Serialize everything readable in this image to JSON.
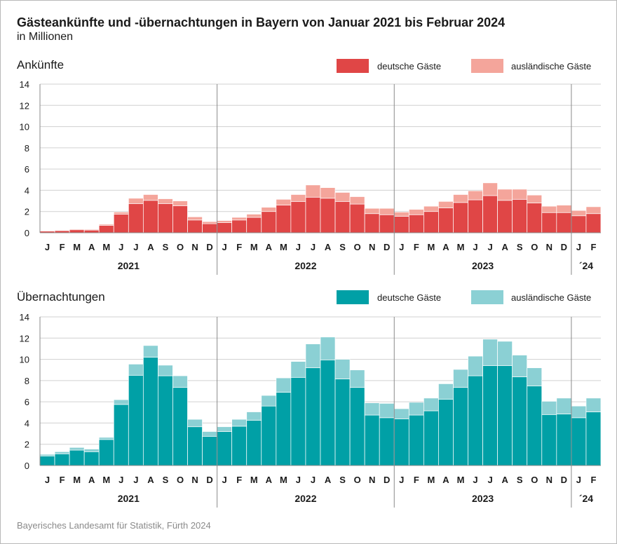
{
  "title": "Gästeankünfte und -übernachtungen in Bayern von Januar 2021 bis Februar 2024",
  "subtitle": "in Millionen",
  "source": "Bayerisches Landesamt für Statistik, Fürth 2024",
  "chart_data": [
    {
      "type": "bar",
      "stacked": true,
      "title": "Ankünfte",
      "ylim": [
        0,
        14
      ],
      "yticks": [
        0,
        2,
        4,
        6,
        8,
        10,
        12,
        14
      ],
      "grid": true,
      "legend": "top-right",
      "categories": [
        "J",
        "F",
        "M",
        "A",
        "M",
        "J",
        "J",
        "A",
        "S",
        "O",
        "N",
        "D",
        "J",
        "F",
        "M",
        "A",
        "M",
        "J",
        "J",
        "A",
        "S",
        "O",
        "N",
        "D",
        "J",
        "F",
        "M",
        "A",
        "M",
        "J",
        "J",
        "A",
        "S",
        "O",
        "N",
        "D",
        "J",
        "F"
      ],
      "years": [
        "2021",
        "2022",
        "2023",
        "´24"
      ],
      "series": [
        {
          "name": "deutsche Gäste",
          "color": "#e04646",
          "values": [
            0.15,
            0.2,
            0.28,
            0.25,
            0.7,
            1.75,
            2.75,
            3.05,
            2.75,
            2.55,
            1.2,
            0.85,
            0.95,
            1.2,
            1.45,
            2.0,
            2.6,
            2.95,
            3.35,
            3.25,
            2.95,
            2.7,
            1.8,
            1.7,
            1.55,
            1.7,
            2.0,
            2.35,
            2.85,
            3.1,
            3.5,
            3.05,
            3.15,
            2.8,
            1.9,
            1.9,
            1.6,
            1.8
          ]
        },
        {
          "name": "ausländische Gäste",
          "color": "#f4a59b",
          "values": [
            0.05,
            0.05,
            0.07,
            0.07,
            0.1,
            0.2,
            0.5,
            0.55,
            0.45,
            0.45,
            0.3,
            0.2,
            0.2,
            0.25,
            0.3,
            0.4,
            0.55,
            0.65,
            1.15,
            1.0,
            0.85,
            0.7,
            0.5,
            0.6,
            0.4,
            0.5,
            0.5,
            0.6,
            0.75,
            0.85,
            1.2,
            1.05,
            0.95,
            0.75,
            0.6,
            0.7,
            0.5,
            0.65
          ]
        }
      ]
    },
    {
      "type": "bar",
      "stacked": true,
      "title": "Übernachtungen",
      "ylim": [
        0,
        14
      ],
      "yticks": [
        0,
        2,
        4,
        6,
        8,
        10,
        12,
        14
      ],
      "grid": true,
      "legend": "top-right",
      "categories": [
        "J",
        "F",
        "M",
        "A",
        "M",
        "J",
        "J",
        "A",
        "S",
        "O",
        "N",
        "D",
        "J",
        "F",
        "M",
        "A",
        "M",
        "J",
        "J",
        "A",
        "S",
        "O",
        "N",
        "D",
        "J",
        "F",
        "M",
        "A",
        "M",
        "J",
        "J",
        "A",
        "S",
        "O",
        "N",
        "D",
        "J",
        "F"
      ],
      "years": [
        "2021",
        "2022",
        "2023",
        "´24"
      ],
      "series": [
        {
          "name": "deutsche Gäste",
          "color": "#00a0a6",
          "values": [
            0.9,
            1.1,
            1.45,
            1.3,
            2.45,
            5.75,
            8.5,
            10.2,
            8.45,
            7.35,
            3.65,
            2.75,
            3.2,
            3.7,
            4.25,
            5.6,
            6.9,
            8.3,
            9.2,
            9.95,
            8.15,
            7.35,
            4.75,
            4.5,
            4.4,
            4.75,
            5.15,
            6.25,
            7.35,
            8.45,
            9.4,
            9.4,
            8.35,
            7.5,
            4.8,
            4.85,
            4.5,
            5.05
          ]
        },
        {
          "name": "ausländische Gäste",
          "color": "#8bd0d4",
          "values": [
            0.15,
            0.2,
            0.25,
            0.25,
            0.2,
            0.45,
            1.05,
            1.1,
            1.0,
            1.1,
            0.7,
            0.45,
            0.45,
            0.65,
            0.8,
            1.0,
            1.35,
            1.5,
            2.25,
            2.15,
            1.85,
            1.65,
            1.15,
            1.35,
            0.95,
            1.2,
            1.2,
            1.45,
            1.7,
            1.85,
            2.5,
            2.3,
            2.05,
            1.7,
            1.25,
            1.5,
            1.1,
            1.3
          ]
        }
      ]
    }
  ]
}
